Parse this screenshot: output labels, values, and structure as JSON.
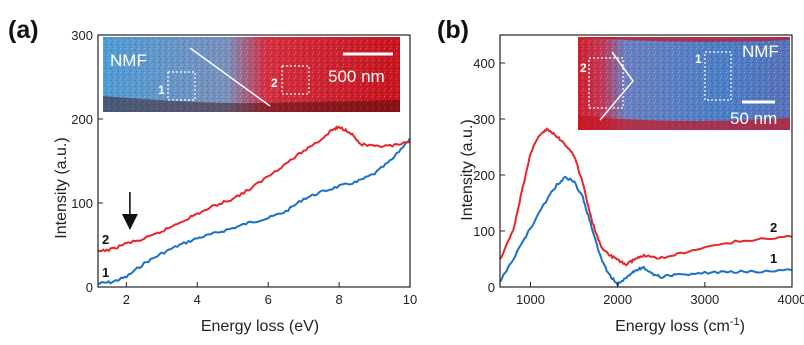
{
  "colors": {
    "series_1": "#1a72c6",
    "series_2": "#e6262b",
    "axis": "#222222"
  },
  "chart_data": [
    {
      "type": "line",
      "panel_label": "(a)",
      "xlabel": "Energy loss (eV)",
      "ylabel": "Intensity (a.u.)",
      "xlim": [
        1.2,
        10
      ],
      "ylim": [
        0,
        300
      ],
      "xticks": [
        "2",
        "4",
        "6",
        "8",
        "10"
      ],
      "yticks": [
        "0",
        "100",
        "200",
        "300"
      ],
      "grid": false,
      "arrow_at_x": 2.1,
      "series": [
        {
          "name": "1",
          "x": [
            1.2,
            1.6,
            2.0,
            2.5,
            3.0,
            3.5,
            4.0,
            4.5,
            5.0,
            5.5,
            6.0,
            6.5,
            7.0,
            7.5,
            8.0,
            8.5,
            9.0,
            9.5,
            10.0
          ],
          "y": [
            4,
            6,
            12,
            28,
            40,
            50,
            58,
            64,
            70,
            77,
            82,
            90,
            105,
            113,
            120,
            125,
            135,
            152,
            177
          ]
        },
        {
          "name": "2",
          "x": [
            1.2,
            1.6,
            2.0,
            2.5,
            3.0,
            3.5,
            4.0,
            4.5,
            5.0,
            5.5,
            6.0,
            6.5,
            7.0,
            7.5,
            7.8,
            8.0,
            8.3,
            8.6,
            9.0,
            9.5,
            10.0
          ],
          "y": [
            42,
            45,
            52,
            57,
            66,
            77,
            87,
            97,
            105,
            117,
            132,
            147,
            162,
            176,
            187,
            190,
            185,
            170,
            167,
            168,
            172
          ]
        }
      ],
      "inset": {
        "title": "NMF",
        "scalebar": "500 nm",
        "region_labels": [
          "1",
          "2"
        ]
      }
    },
    {
      "type": "line",
      "panel_label": "(b)",
      "xlabel": "Energy loss (cm",
      "xlabel_sup": "-1",
      "xlabel_end": ")",
      "ylabel": "Intensity (a.u.)",
      "xlim": [
        650,
        4000
      ],
      "ylim": [
        0,
        450
      ],
      "xticks": [
        "1000",
        "2000",
        "3000",
        "4000"
      ],
      "yticks": [
        "0",
        "100",
        "200",
        "300",
        "400"
      ],
      "grid": false,
      "series": [
        {
          "name": "1",
          "x": [
            650,
            800,
            1000,
            1200,
            1300,
            1400,
            1500,
            1600,
            1700,
            1800,
            1900,
            2000,
            2100,
            2200,
            2300,
            2400,
            2500,
            2700,
            3000,
            3300,
            3600,
            4000
          ],
          "y": [
            10,
            50,
            105,
            160,
            182,
            196,
            188,
            160,
            108,
            55,
            22,
            5,
            18,
            30,
            35,
            24,
            18,
            22,
            25,
            27,
            28,
            30
          ]
        },
        {
          "name": "2",
          "x": [
            650,
            800,
            900,
            1000,
            1100,
            1200,
            1300,
            1400,
            1500,
            1600,
            1700,
            1800,
            1900,
            2000,
            2100,
            2200,
            2300,
            2500,
            2800,
            3200,
            3600,
            4000
          ],
          "y": [
            48,
            100,
            170,
            240,
            270,
            282,
            270,
            252,
            235,
            185,
            120,
            75,
            58,
            48,
            40,
            50,
            55,
            52,
            62,
            78,
            85,
            90
          ]
        }
      ],
      "inset": {
        "title": "NMF",
        "scalebar": "50 nm",
        "region_labels": [
          "2",
          "1"
        ]
      }
    }
  ]
}
